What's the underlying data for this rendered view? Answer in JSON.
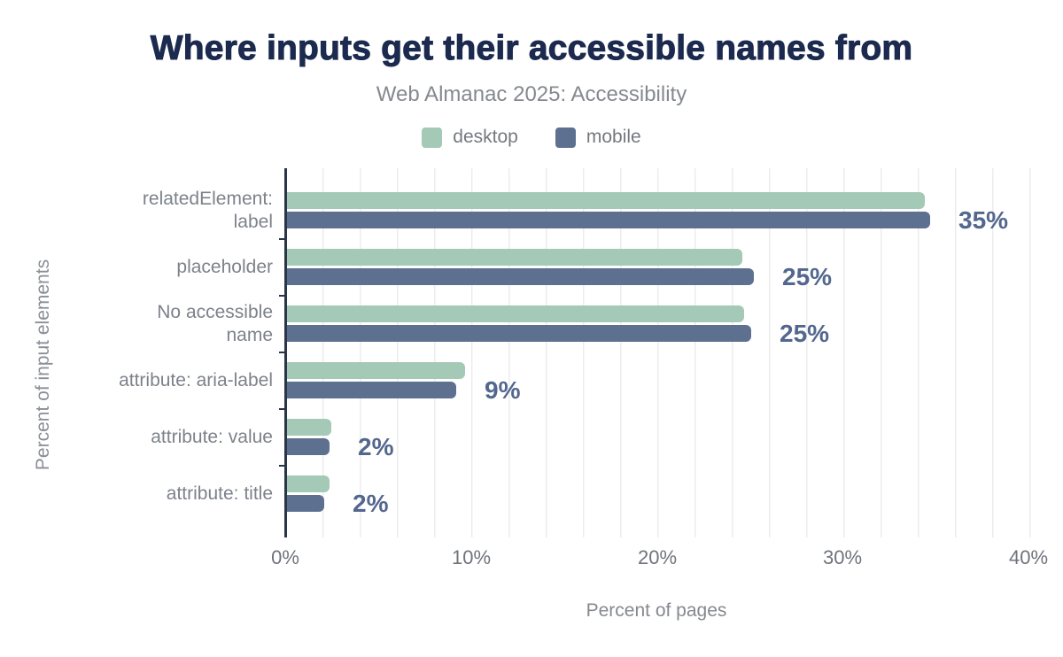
{
  "header": {
    "title": "Where inputs get their accessible names from",
    "subtitle": "Web Almanac 2025: Accessibility"
  },
  "legend": {
    "items": [
      {
        "label": "desktop",
        "color": "#a4c9b6"
      },
      {
        "label": "mobile",
        "color": "#5e7090"
      }
    ]
  },
  "colors": {
    "title": "#1b2a4e",
    "subtitle": "#85898f",
    "desktop_bar": "#a4c9b6",
    "mobile_bar": "#5e7090",
    "value_label": "#53678e",
    "axis_line": "#2b3548",
    "gridline": "#ececec",
    "category_label": "#7d828a",
    "tick_label": "#6f747b"
  },
  "chart_data": {
    "type": "bar",
    "orientation": "horizontal",
    "title": "Where inputs get their accessible names from",
    "subtitle": "Web Almanac 2025: Accessibility",
    "xlabel": "Percent of pages",
    "ylabel": "Percent of input elements",
    "xlim": [
      0,
      40
    ],
    "grid": true,
    "gridline_step_percent": 2,
    "legend_position": "top",
    "x_ticks": [
      {
        "label": "0%",
        "value": 0
      },
      {
        "label": "10%",
        "value": 10
      },
      {
        "label": "20%",
        "value": 20
      },
      {
        "label": "30%",
        "value": 30
      },
      {
        "label": "40%",
        "value": 40
      }
    ],
    "categories": [
      "relatedElement:\nlabel",
      "placeholder",
      "No accessible\nname",
      "attribute: aria-label",
      "attribute: value",
      "attribute: title"
    ],
    "series": [
      {
        "name": "desktop",
        "color": "#a4c9b6",
        "values": [
          34.4,
          24.6,
          24.7,
          9.7,
          2.5,
          2.4
        ]
      },
      {
        "name": "mobile",
        "color": "#5e7090",
        "values": [
          34.7,
          25.2,
          25.1,
          9.2,
          2.4,
          2.1
        ]
      }
    ],
    "value_labels": [
      "35%",
      "25%",
      "25%",
      "9%",
      "2%",
      "2%"
    ]
  }
}
